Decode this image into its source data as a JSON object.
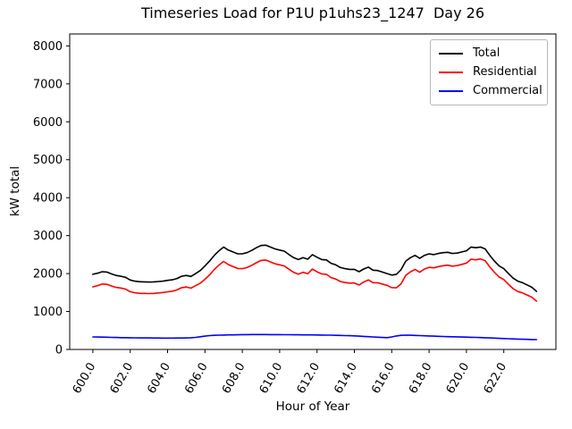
{
  "title": "Timeseries Load for P1U p1uhs23_1247  Day 26",
  "axes": {
    "xlabel": "Hour of Year",
    "ylabel": "kW total"
  },
  "legend": {
    "position": "upper right",
    "items": [
      {
        "label": "Total",
        "color": "#000000"
      },
      {
        "label": "Residential",
        "color": "#ff0000"
      },
      {
        "label": "Commercial",
        "color": "#0000ff"
      }
    ]
  },
  "chart_data": {
    "type": "line",
    "title": "Timeseries Load for P1U p1uhs23_1247  Day 26",
    "xlabel": "Hour of Year",
    "ylabel": "kW total",
    "grid": false,
    "legend_position": "upper right",
    "xlim": [
      598.76,
      624.79
    ],
    "ylim": [
      0,
      8315
    ],
    "x_ticks": [
      600,
      602,
      604,
      606,
      608,
      610,
      612,
      614,
      616,
      618,
      620,
      622
    ],
    "x_tick_labels": [
      "600.0",
      "602.0",
      "604.0",
      "606.0",
      "608.0",
      "610.0",
      "612.0",
      "614.0",
      "616.0",
      "618.0",
      "620.0",
      "622.0"
    ],
    "y_ticks": [
      0,
      1000,
      2000,
      3000,
      4000,
      5000,
      6000,
      7000,
      8000
    ],
    "y_tick_labels": [
      "0",
      "1000",
      "2000",
      "3000",
      "4000",
      "5000",
      "6000",
      "7000",
      "8000"
    ],
    "x": [
      600,
      600.25,
      600.5,
      600.75,
      601,
      601.25,
      601.5,
      601.75,
      602,
      602.25,
      602.5,
      602.75,
      603,
      603.25,
      603.5,
      603.75,
      604,
      604.25,
      604.5,
      604.75,
      605,
      605.25,
      605.5,
      605.75,
      606,
      606.25,
      606.5,
      606.75,
      607,
      607.25,
      607.5,
      607.75,
      608,
      608.25,
      608.5,
      608.75,
      609,
      609.25,
      609.5,
      609.75,
      610,
      610.25,
      610.5,
      610.75,
      611,
      611.25,
      611.5,
      611.75,
      612,
      612.25,
      612.5,
      612.75,
      613,
      613.25,
      613.5,
      613.75,
      614,
      614.25,
      614.5,
      614.75,
      615,
      615.25,
      615.5,
      615.75,
      616,
      616.25,
      616.5,
      616.75,
      617,
      617.25,
      617.5,
      617.75,
      618,
      618.25,
      618.5,
      618.75,
      619,
      619.25,
      619.5,
      619.75,
      620,
      620.25,
      620.5,
      620.75,
      621,
      621.25,
      621.5,
      621.75,
      622,
      622.25,
      622.5,
      622.75,
      623,
      623.25,
      623.5,
      623.75
    ],
    "series": [
      {
        "name": "Total",
        "color": "#000000",
        "values": [
          1980,
          2010,
          2050,
          2040,
          1990,
          1950,
          1930,
          1900,
          1830,
          1800,
          1785,
          1780,
          1775,
          1780,
          1790,
          1800,
          1820,
          1835,
          1870,
          1930,
          1950,
          1925,
          2000,
          2080,
          2200,
          2330,
          2480,
          2600,
          2700,
          2620,
          2570,
          2520,
          2520,
          2550,
          2610,
          2680,
          2740,
          2750,
          2700,
          2650,
          2620,
          2590,
          2500,
          2420,
          2370,
          2420,
          2380,
          2500,
          2430,
          2370,
          2360,
          2270,
          2230,
          2160,
          2130,
          2110,
          2110,
          2050,
          2120,
          2170,
          2090,
          2080,
          2040,
          2000,
          1960,
          1980,
          2100,
          2330,
          2420,
          2480,
          2400,
          2480,
          2520,
          2500,
          2530,
          2550,
          2560,
          2530,
          2540,
          2570,
          2600,
          2700,
          2680,
          2700,
          2650,
          2480,
          2330,
          2200,
          2130,
          2000,
          1880,
          1800,
          1760,
          1700,
          1640,
          1530
        ]
      },
      {
        "name": "Residential",
        "color": "#ff0000",
        "values": [
          1650,
          1682,
          1725,
          1718,
          1672,
          1635,
          1618,
          1590,
          1522,
          1494,
          1480,
          1476,
          1472,
          1478,
          1489,
          1500,
          1520,
          1535,
          1569,
          1628,
          1647,
          1617,
          1682,
          1745,
          1848,
          1965,
          2108,
          2223,
          2320,
          2237,
          2185,
          2133,
          2130,
          2158,
          2217,
          2286,
          2346,
          2357,
          2308,
          2259,
          2230,
          2201,
          2112,
          2033,
          1984,
          2035,
          1996,
          2117,
          2048,
          1990,
          1982,
          1894,
          1857,
          1790,
          1764,
          1748,
          1752,
          1698,
          1775,
          1832,
          1760,
          1758,
          1725,
          1688,
          1630,
          1625,
          1728,
          1952,
          2045,
          2110,
          2035,
          2120,
          2165,
          2150,
          2184,
          2208,
          2222,
          2196,
          2209,
          2242,
          2275,
          2379,
          2363,
          2387,
          2342,
          2177,
          2032,
          1907,
          1842,
          1717,
          1602,
          1527,
          1491,
          1435,
          1379,
          1272
        ]
      },
      {
        "name": "Commercial",
        "color": "#0000ff",
        "values": [
          330,
          328,
          325,
          322,
          318,
          315,
          312,
          310,
          308,
          306,
          305,
          304,
          303,
          302,
          301,
          300,
          300,
          300,
          301,
          302,
          303,
          308,
          318,
          335,
          352,
          365,
          372,
          377,
          380,
          383,
          385,
          387,
          390,
          392,
          393,
          394,
          394,
          393,
          392,
          391,
          390,
          389,
          388,
          387,
          386,
          385,
          384,
          383,
          382,
          380,
          378,
          376,
          373,
          370,
          366,
          362,
          358,
          352,
          345,
          338,
          330,
          322,
          315,
          312,
          330,
          355,
          372,
          378,
          375,
          370,
          365,
          360,
          355,
          350,
          346,
          342,
          338,
          334,
          331,
          328,
          325,
          321,
          317,
          313,
          308,
          303,
          298,
          293,
          288,
          283,
          278,
          273,
          269,
          265,
          261,
          258
        ]
      }
    ]
  }
}
